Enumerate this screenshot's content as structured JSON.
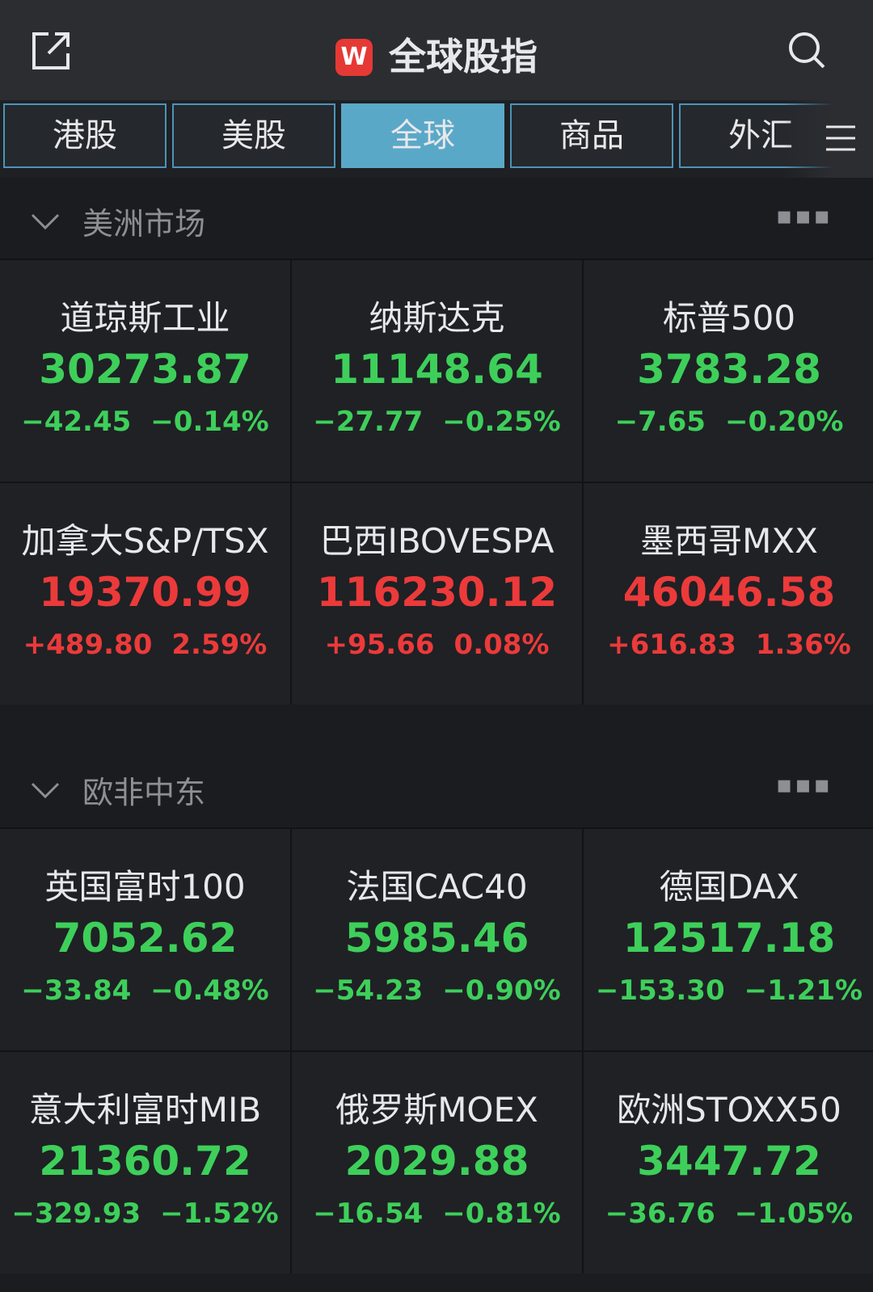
{
  "header": {
    "logo": "W",
    "title": "全球股指"
  },
  "tabs": {
    "items": [
      "港股",
      "美股",
      "全球",
      "商品",
      "外汇"
    ],
    "active": 2
  },
  "sections": [
    {
      "title": "美洲市场",
      "cards": [
        {
          "name": "道琼斯工业",
          "price": "30273.87",
          "change": "−42.45",
          "pct": "−0.14%",
          "color": "#3ecf5a"
        },
        {
          "name": "纳斯达克",
          "price": "11148.64",
          "change": "−27.77",
          "pct": "−0.25%",
          "color": "#3ecf5a"
        },
        {
          "name": "标普500",
          "price": "3783.28",
          "change": "−7.65",
          "pct": "−0.20%",
          "color": "#3ecf5a"
        },
        {
          "name": "加拿大S&P/TSX",
          "price": "19370.99",
          "change": "+489.80",
          "pct": "2.59%",
          "color": "#ec3a3a"
        },
        {
          "name": "巴西IBOVESPA",
          "price": "116230.12",
          "change": "+95.66",
          "pct": "0.08%",
          "color": "#ec3a3a"
        },
        {
          "name": "墨西哥MXX",
          "price": "46046.58",
          "change": "+616.83",
          "pct": "1.36%",
          "color": "#ec3a3a"
        }
      ]
    },
    {
      "title": "欧非中东",
      "cards": [
        {
          "name": "英国富时100",
          "price": "7052.62",
          "change": "−33.84",
          "pct": "−0.48%",
          "color": "#3ecf5a"
        },
        {
          "name": "法国CAC40",
          "price": "5985.46",
          "change": "−54.23",
          "pct": "−0.90%",
          "color": "#3ecf5a"
        },
        {
          "name": "德国DAX",
          "price": "12517.18",
          "change": "−153.30",
          "pct": "−1.21%",
          "color": "#3ecf5a"
        },
        {
          "name": "意大利富时MIB",
          "price": "21360.72",
          "change": "−329.93",
          "pct": "−1.52%",
          "color": "#3ecf5a"
        },
        {
          "name": "俄罗斯MOEX",
          "price": "2029.88",
          "change": "−16.54",
          "pct": "−0.81%",
          "color": "#3ecf5a"
        },
        {
          "name": "欧洲STOXX50",
          "price": "3447.72",
          "change": "−36.76",
          "pct": "−1.05%",
          "color": "#3ecf5a"
        }
      ]
    }
  ]
}
